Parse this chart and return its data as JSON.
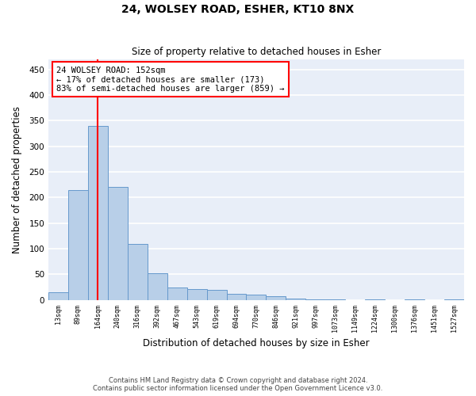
{
  "title1": "24, WOLSEY ROAD, ESHER, KT10 8NX",
  "title2": "Size of property relative to detached houses in Esher",
  "xlabel": "Distribution of detached houses by size in Esher",
  "ylabel": "Number of detached properties",
  "categories": [
    "13sqm",
    "89sqm",
    "164sqm",
    "240sqm",
    "316sqm",
    "392sqm",
    "467sqm",
    "543sqm",
    "619sqm",
    "694sqm",
    "770sqm",
    "846sqm",
    "921sqm",
    "997sqm",
    "1073sqm",
    "1149sqm",
    "1224sqm",
    "1300sqm",
    "1376sqm",
    "1451sqm",
    "1527sqm"
  ],
  "values": [
    15,
    215,
    340,
    220,
    110,
    52,
    25,
    22,
    20,
    12,
    10,
    7,
    3,
    2,
    1,
    0,
    2,
    0,
    1,
    0,
    1
  ],
  "bar_color": "#b8cfe8",
  "bar_edge_color": "#6699cc",
  "red_line_x": 2.0,
  "annotation_line1": "24 WOLSEY ROAD: 152sqm",
  "annotation_line2": "← 17% of detached houses are smaller (173)",
  "annotation_line3": "83% of semi-detached houses are larger (859) →",
  "annotation_box_color": "white",
  "annotation_box_edge": "red",
  "background_color": "#e8eef8",
  "grid_color": "white",
  "footer1": "Contains HM Land Registry data © Crown copyright and database right 2024.",
  "footer2": "Contains public sector information licensed under the Open Government Licence v3.0.",
  "ylim": [
    0,
    470
  ],
  "yticks": [
    0,
    50,
    100,
    150,
    200,
    250,
    300,
    350,
    400,
    450
  ]
}
